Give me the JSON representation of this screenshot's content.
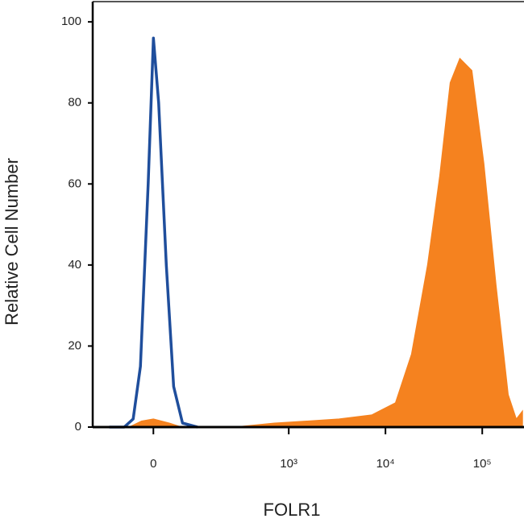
{
  "chart_data": {
    "type": "histogram-overlay",
    "x_label": "FOLR1",
    "y_label": "Relative Cell Number",
    "x_scale": "biexponential",
    "xlim": [
      -160,
      270000
    ],
    "xticks": [
      0,
      {
        "value": 1000,
        "label": "10³"
      },
      {
        "value": 10000,
        "label": "10⁴"
      },
      {
        "value": 100000,
        "label": "10⁵"
      }
    ],
    "ylim": [
      0,
      105
    ],
    "yticks": [
      0,
      20,
      40,
      60,
      80,
      100
    ],
    "series": [
      {
        "color": "#f5821f",
        "fill": true,
        "x": [
          -49,
          -23,
          0,
          31,
          58,
          266,
          709,
          1529,
          3300,
          7190,
          12660,
          18570,
          27200,
          36300,
          46600,
          58700,
          78200,
          104000,
          139000,
          185600,
          224900,
          261000
        ],
        "values": [
          0,
          1.5,
          2,
          1,
          0,
          0,
          1,
          1.5,
          2,
          3,
          6,
          18,
          40,
          62,
          85,
          91,
          88,
          65,
          35,
          8,
          2,
          4
        ]
      },
      {
        "color": "#1f4e9c",
        "fill": false,
        "x": [
          -100,
          -60,
          -40,
          -25,
          -10,
          0,
          10,
          25,
          40,
          60,
          100
        ],
        "values": [
          0,
          0,
          2,
          15,
          60,
          96,
          80,
          40,
          10,
          1,
          0
        ]
      }
    ]
  }
}
